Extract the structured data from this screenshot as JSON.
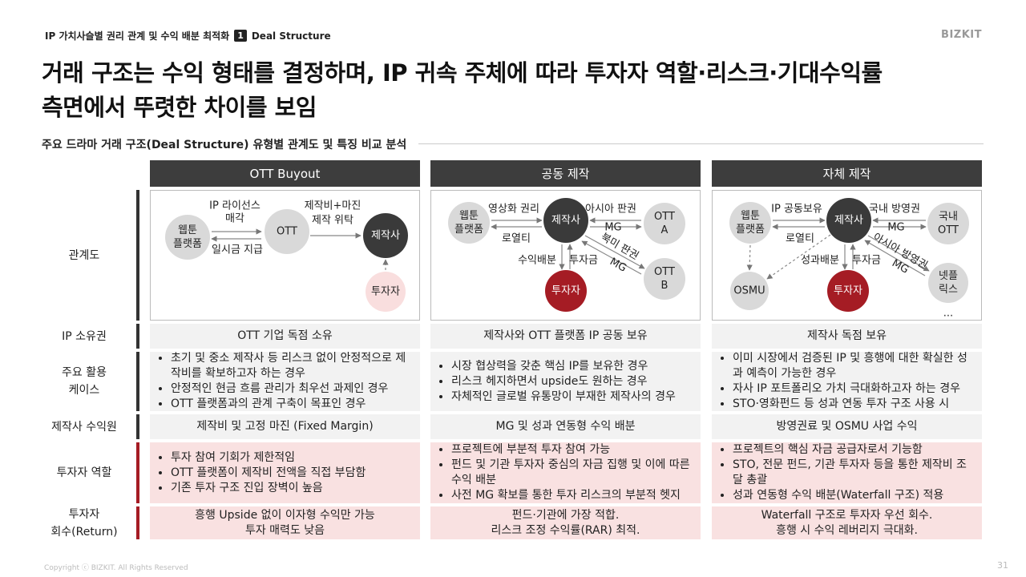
{
  "header": {
    "section": "IP 가치사슬별 권리 관계 및 수익 배분 최적화",
    "badge": "1",
    "badge_label": "Deal Structure",
    "brand": "BIZKIT"
  },
  "title": [
    "거래 구조는 수익 형태를 결정하며, IP 귀속 주체에 따라 투자자 역할·리스크·기대수익률",
    "측면에서 뚜렷한 차이를 보임"
  ],
  "subtitle": "주요 드라마 거래 구조(Deal Structure) 유형별 관계도 및 특징 비교 분석",
  "table": {
    "columns": [
      "OTT Buyout",
      "공동 제작",
      "자체 제작"
    ],
    "row_labels": [
      [
        "관계도"
      ],
      [
        "IP 소유권"
      ],
      [
        "주요 활용",
        "케이스"
      ],
      [
        "제작사 수익원"
      ],
      [
        "투자자 역할"
      ],
      [
        "투자자",
        "회수(Return)"
      ]
    ],
    "ip_ownership": [
      "OTT 기업 독점 소유",
      "제작사와 OTT 플랫폼 IP 공동 보유",
      "제작사 독점 보유"
    ],
    "use_cases": [
      [
        "초기 및 중소 제작사 등 리스크 없이 안정적으로 제작비를 확보하고자 하는 경우",
        "안정적인 현금 흐름 관리가 최우선 과제인 경우",
        "OTT 플랫폼과의 관계 구축이 목표인 경우"
      ],
      [
        "시장 협상력을 갖춘 핵심 IP를 보유한 경우",
        "리스크 헤지하면서 upside도 원하는 경우",
        "자체적인 글로벌 유통망이 부재한 제작사의 경우"
      ],
      [
        "이미 시장에서 검증된 IP 및 흥행에 대한 확실한 성과 예측이 가능한 경우",
        "자사 IP 포트폴리오 가치 극대화하고자 하는 경우",
        "STO·영화펀드 등 성과 연동 투자 구조 사용 시"
      ]
    ],
    "revenue": [
      "제작비 및 고정 마진 (Fixed Margin)",
      "MG 및 성과 연동형 수익 배분",
      "방영권료 및 OSMU 사업 수익"
    ],
    "investor_role": [
      [
        "투자 참여 기회가 제한적임",
        "OTT 플랫폼이 제작비 전액을 직접 부담함",
        "기존 투자 구조 진입 장벽이 높음"
      ],
      [
        "프로젝트에 부분적 투자 참여 가능",
        "펀드 및 기관 투자자 중심의 자금 집행 및 이에 따른 수익 배분",
        "사전 MG 확보를 통한 투자 리스크의 부분적 헷지"
      ],
      [
        "프로젝트의 핵심 자금 공급자로서 기능함",
        "STO, 전문 펀드, 기관 투자자 등을 통한 제작비 조달 총괄",
        "성과 연동형 수익 배분(Waterfall 구조) 적용"
      ]
    ],
    "investor_return": [
      [
        "흥행 Upside 없이 이자형 수익만 가능",
        "투자 매력도 낮음"
      ],
      [
        "펀드·기관에 가장 적합.",
        "리스크 조정 수익률(RAR) 최적."
      ],
      [
        "Waterfall 구조로 투자자 우선 회수.",
        "흥행 시 수익 레버리지 극대화."
      ]
    ]
  },
  "diagrams": [
    {
      "nodes": [
        [
          "웹툰",
          "플랫폼"
        ],
        [
          "OTT"
        ],
        [
          "제작사"
        ],
        [
          "투자자"
        ]
      ],
      "labels": [
        "IP 라이선스",
        "매각",
        "일시금 지급",
        "제작비+마진",
        "제작 위탁"
      ]
    },
    {
      "nodes": [
        [
          "웹툰",
          "플랫폼"
        ],
        [
          "제작사"
        ],
        [
          "OTT",
          "A"
        ],
        [
          "OTT",
          "B"
        ],
        [
          "투자자"
        ]
      ],
      "labels": [
        "영상화 권리",
        "로열티",
        "아시아 판권",
        "MG",
        "북미 판권",
        "MG",
        "수익배분",
        "투자금"
      ]
    },
    {
      "nodes": [
        [
          "웹툰",
          "플랫폼"
        ],
        [
          "제작사"
        ],
        [
          "국내",
          "OTT"
        ],
        [
          "OSMU"
        ],
        [
          "투자자"
        ],
        [
          "넷플",
          "릭스"
        ]
      ],
      "labels": [
        "IP 공동보유",
        "로열티",
        "국내 방영권",
        "MG",
        "아시아 방영권",
        "MG",
        "성과배분",
        "투자금",
        "..."
      ]
    }
  ],
  "footer": {
    "copyright": "Copyright ⓒ BIZKIT. All Rights Reserved",
    "page": "31"
  }
}
